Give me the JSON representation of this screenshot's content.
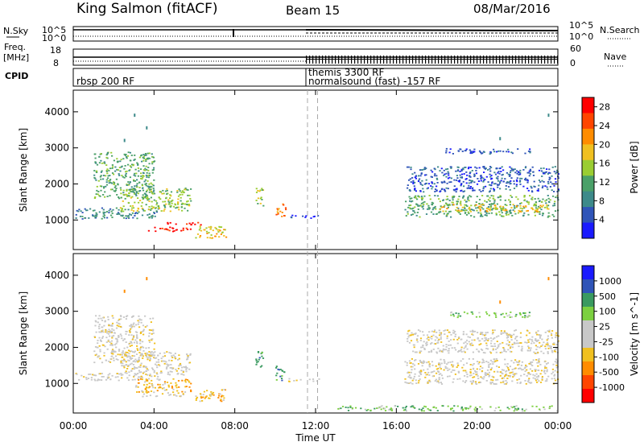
{
  "header": {
    "title": "King Salmon (fitACF)",
    "beam": "Beam 15",
    "date": "08/Mar/2016"
  },
  "strips": {
    "nsky_label": "N.Sky",
    "nsky_top": "10^5",
    "nsky_bottom": "10^0",
    "nsearch_label": "N.Search",
    "nsearch_top": "10^5",
    "nsearch_bottom": "10^0",
    "freq_label_1": "Freq.",
    "freq_label_2": "[MHz]",
    "freq_top": "18",
    "freq_bottom": "8",
    "nave_label": "Nave",
    "nave_top": "60",
    "nave_bottom": "0",
    "cpid_label": "CPID",
    "cpid_programs": [
      {
        "label": "rbsp 200 RF",
        "start_hour": 0
      },
      {
        "label": "themis 3300 RF",
        "start_hour": 11.6
      },
      {
        "label": "normalsound (fast) -157 RF",
        "start_hour": 11.6
      }
    ]
  },
  "colors": {
    "power_scale": [
      "#1a1aff",
      "#2f54b8",
      "#3d8a8a",
      "#4aa068",
      "#9acd32",
      "#f0c020",
      "#ff8c00",
      "#ff4500",
      "#ff0000"
    ],
    "velocity_scale": [
      "#ff0000",
      "#ff4500",
      "#ff8c00",
      "#f0c020",
      "#c8c8c8",
      "#c8c8c8",
      "#7cd040",
      "#3a9a60",
      "#2f54b8",
      "#1a1aff"
    ],
    "ground_scatter": "#c8c8c8"
  },
  "chart_data": [
    {
      "type": "heatmap",
      "panel": "power",
      "ylabel": "Slant Range [km]",
      "xlabel": "Time UT",
      "x_ticks": [
        "00:00",
        "04:00",
        "08:00",
        "12:00",
        "16:00",
        "20:00",
        "00:00"
      ],
      "x_range_hours": [
        0,
        24
      ],
      "y_ticks": [
        1000,
        2000,
        3000,
        4000
      ],
      "ylim": [
        180,
        4600
      ],
      "colorbar_label": "Power [dB]",
      "colorbar_ticks": [
        4,
        8,
        12,
        16,
        20,
        24,
        28
      ],
      "colorbar_range": [
        0,
        30
      ],
      "scatter_regions": [
        {
          "t0": 0.1,
          "t1": 4.2,
          "r0": 1050,
          "r1": 1350,
          "level": 2
        },
        {
          "t0": 2.3,
          "t1": 5.8,
          "r0": 1250,
          "r1": 1900,
          "level": 4
        },
        {
          "t0": 1.0,
          "t1": 4.0,
          "r0": 1600,
          "r1": 2900,
          "level": 3
        },
        {
          "t0": 3.6,
          "t1": 6.0,
          "r0": 700,
          "r1": 820,
          "level": 8
        },
        {
          "t0": 4.5,
          "t1": 6.3,
          "r0": 880,
          "r1": 960,
          "level": 8
        },
        {
          "t0": 6.0,
          "t1": 7.6,
          "r0": 500,
          "r1": 850,
          "level": 5
        },
        {
          "t0": 9.0,
          "t1": 9.4,
          "r0": 1400,
          "r1": 1900,
          "level": 4
        },
        {
          "t0": 10.0,
          "t1": 10.5,
          "r0": 1100,
          "r1": 1500,
          "level": 6
        },
        {
          "t0": 10.5,
          "t1": 12.2,
          "r0": 1070,
          "r1": 1150,
          "level": 1
        },
        {
          "t0": 16.4,
          "t1": 24.0,
          "r0": 1100,
          "r1": 1700,
          "level": 3
        },
        {
          "t0": 18.0,
          "t1": 23.5,
          "r0": 1250,
          "r1": 1450,
          "level": 5
        },
        {
          "t0": 16.5,
          "t1": 24.0,
          "r0": 1800,
          "r1": 2500,
          "level": 1
        },
        {
          "t0": 18.4,
          "t1": 22.6,
          "r0": 2850,
          "r1": 3000,
          "level": 1
        }
      ],
      "points": [
        [
          3.0,
          3950
        ],
        [
          3.6,
          3600
        ],
        [
          2.5,
          3250
        ],
        [
          21.1,
          3300
        ],
        [
          23.5,
          3950
        ]
      ]
    },
    {
      "type": "heatmap",
      "panel": "velocity",
      "ylabel": "Slant Range [km]",
      "xlabel": "Time UT",
      "x_ticks": [
        "00:00",
        "04:00",
        "08:00",
        "12:00",
        "16:00",
        "20:00",
        "00:00"
      ],
      "x_range_hours": [
        0,
        24
      ],
      "y_ticks": [
        1000,
        2000,
        3000,
        4000
      ],
      "ylim": [
        180,
        4600
      ],
      "colorbar_label": "Velocity [m s^-1]",
      "colorbar_ticks": [
        -1000,
        -500,
        -100,
        -25,
        25,
        100,
        500,
        1000
      ],
      "colorbar_range": [
        -1200,
        1200
      ],
      "scatter_regions": [
        {
          "t0": 0.1,
          "t1": 4.2,
          "r0": 1100,
          "r1": 1300,
          "level": 4
        },
        {
          "t0": 2.3,
          "t1": 5.8,
          "r0": 1250,
          "r1": 1900,
          "level": 4
        },
        {
          "t0": 1.0,
          "t1": 4.0,
          "r0": 1600,
          "r1": 2900,
          "level": 4
        },
        {
          "t0": 3.0,
          "t1": 5.8,
          "r0": 780,
          "r1": 1150,
          "level": 3
        },
        {
          "t0": 3.4,
          "t1": 5.5,
          "r0": 650,
          "r1": 780,
          "level": 4
        },
        {
          "t0": 6.0,
          "t1": 7.6,
          "r0": 500,
          "r1": 850,
          "level": 3
        },
        {
          "t0": 9.0,
          "t1": 9.4,
          "r0": 1400,
          "r1": 1900,
          "level": 7
        },
        {
          "t0": 10.0,
          "t1": 10.5,
          "r0": 1100,
          "r1": 1500,
          "level": 7
        },
        {
          "t0": 10.5,
          "t1": 12.2,
          "r0": 1070,
          "r1": 1150,
          "level": 4
        },
        {
          "t0": 16.4,
          "t1": 24.0,
          "r0": 1000,
          "r1": 1700,
          "level": 4
        },
        {
          "t0": 16.5,
          "t1": 24.0,
          "r0": 1850,
          "r1": 2500,
          "level": 4
        },
        {
          "t0": 18.4,
          "t1": 22.6,
          "r0": 2850,
          "r1": 3000,
          "level": 6
        },
        {
          "t0": 13.0,
          "t1": 24.0,
          "r0": 250,
          "r1": 400,
          "level": 6
        }
      ],
      "points": [
        [
          3.6,
          3950
        ],
        [
          2.5,
          3600
        ],
        [
          21.1,
          3300
        ],
        [
          23.5,
          3950
        ]
      ]
    }
  ],
  "vlines_hours": [
    11.6,
    12.1
  ]
}
